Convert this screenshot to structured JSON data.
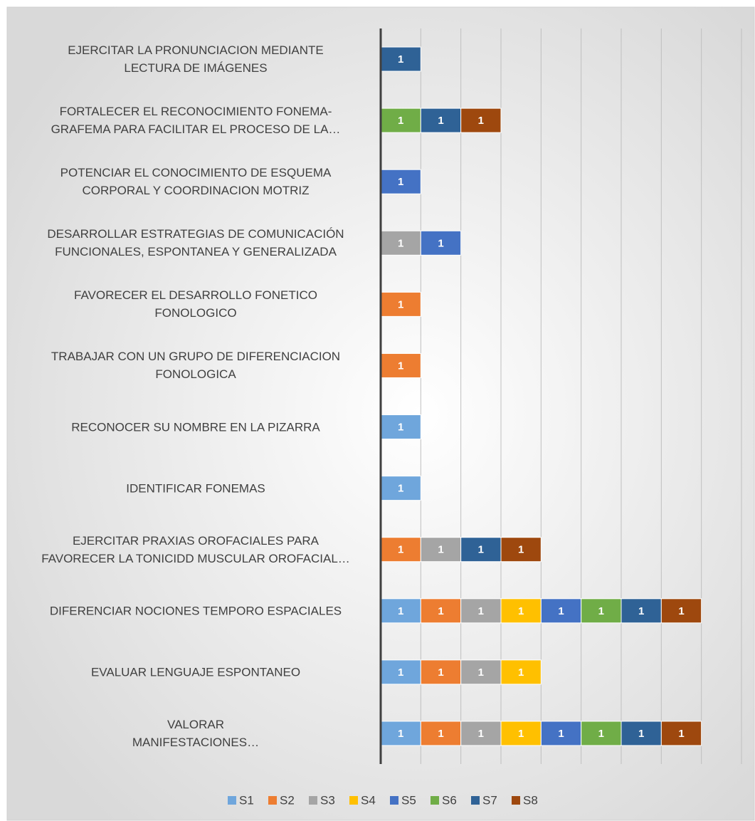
{
  "chart_data": {
    "type": "stacked-bar-horizontal",
    "categories": [
      "EJERCITAR LA PRONUNCIACION MEDIANTE\nLECTURA DE IMÁGENES",
      "FORTALECER EL RECONOCIMIENTO FONEMA-\nGRAFEMA PARA FACILITAR EL PROCESO DE LA…",
      "POTENCIAR EL CONOCIMIENTO DE ESQUEMA\nCORPORAL Y COORDINACION MOTRIZ",
      "DESARROLLAR ESTRATEGIAS DE COMUNICACIÓN\nFUNCIONALES, ESPONTANEA Y GENERALIZADA",
      "FAVORECER EL DESARROLLO FONETICO\nFONOLOGICO",
      "TRABAJAR CON UN GRUPO DE DIFERENCIACION\nFONOLOGICA",
      "RECONOCER SU NOMBRE EN LA PIZARRA",
      "IDENTIFICAR FONEMAS",
      "EJERCITAR PRAXIAS OROFACIALES PARA\nFAVORECER LA TONICIDD MUSCULAR OROFACIAL…",
      "DIFERENCIAR NOCIONES TEMPORO ESPACIALES",
      "EVALUAR LENGUAJE ESPONTANEO",
      "VALORAR\nMANIFESTACIONES…"
    ],
    "series": [
      {
        "name": "S1",
        "color": "#6fa6dc",
        "values": [
          null,
          null,
          null,
          null,
          null,
          null,
          1,
          1,
          null,
          1,
          1,
          1
        ]
      },
      {
        "name": "S2",
        "color": "#ed7d31",
        "values": [
          null,
          null,
          null,
          null,
          1,
          1,
          null,
          null,
          1,
          1,
          1,
          1
        ]
      },
      {
        "name": "S3",
        "color": "#a5a5a5",
        "values": [
          null,
          null,
          null,
          1,
          null,
          null,
          null,
          null,
          1,
          1,
          1,
          1
        ]
      },
      {
        "name": "S4",
        "color": "#ffc000",
        "values": [
          null,
          null,
          null,
          null,
          null,
          null,
          null,
          null,
          null,
          1,
          1,
          1
        ]
      },
      {
        "name": "S5",
        "color": "#4472c4",
        "values": [
          null,
          null,
          1,
          1,
          null,
          null,
          null,
          null,
          null,
          1,
          null,
          1
        ]
      },
      {
        "name": "S6",
        "color": "#70ad47",
        "values": [
          null,
          1,
          null,
          null,
          null,
          null,
          null,
          null,
          null,
          1,
          null,
          1
        ]
      },
      {
        "name": "S7",
        "color": "#2f6296",
        "values": [
          1,
          1,
          null,
          null,
          null,
          null,
          null,
          null,
          1,
          1,
          null,
          1
        ]
      },
      {
        "name": "S8",
        "color": "#9e480e",
        "values": [
          null,
          1,
          null,
          null,
          null,
          null,
          null,
          null,
          1,
          1,
          null,
          1
        ]
      }
    ],
    "xlim": [
      0,
      9
    ],
    "xticks": [
      0,
      1,
      2,
      3,
      4,
      5,
      6,
      7,
      8,
      9
    ],
    "grid": true,
    "legend": "bottom"
  }
}
